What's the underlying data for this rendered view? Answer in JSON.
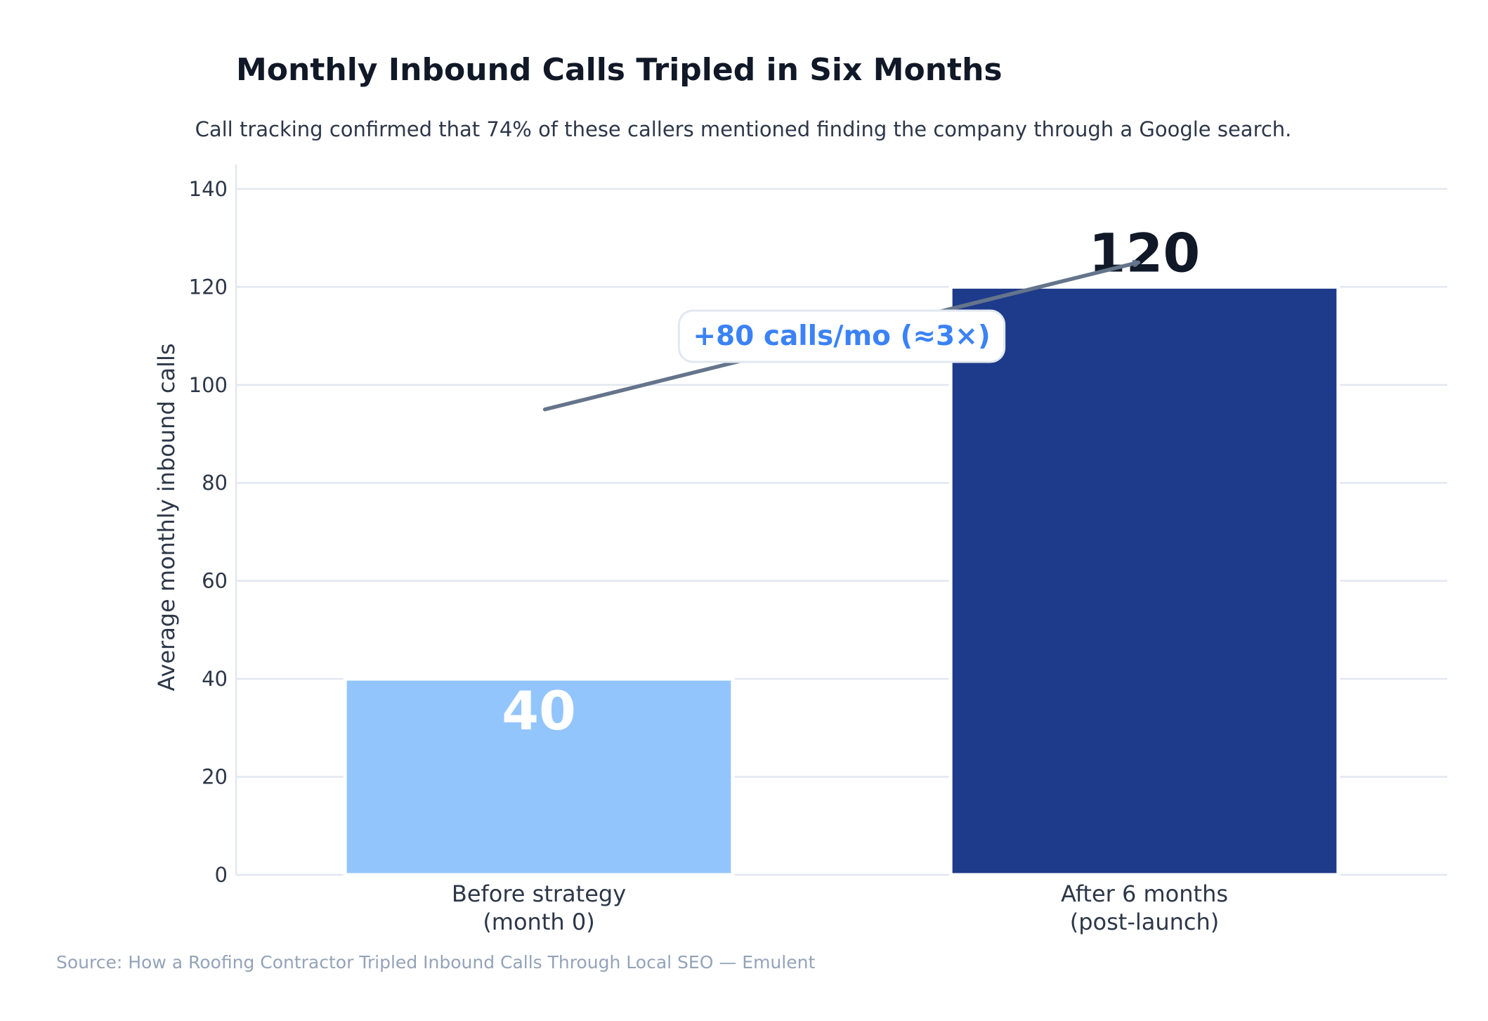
{
  "chart_data": {
    "type": "bar",
    "title": "Monthly Inbound Calls Tripled in Six Months",
    "subtitle": "Call tracking confirmed that 74% of these callers mentioned finding the company through a Google search.",
    "ylabel": "Average monthly inbound calls",
    "xlabel": "",
    "categories": [
      [
        "Before strategy",
        "(month 0)"
      ],
      [
        "After 6 months",
        "(post-launch)"
      ]
    ],
    "values": [
      40,
      120
    ],
    "data_labels": [
      "40",
      "120"
    ],
    "bar_colors": [
      "#93c5fd",
      "#1e3a8a"
    ],
    "data_label_colors": [
      "#ffffff",
      "#111827"
    ],
    "ylim": [
      0,
      145
    ],
    "yticks": [
      0,
      20,
      40,
      60,
      80,
      100,
      120,
      140
    ],
    "grid": true,
    "annotation": {
      "text": "+80 calls/mo (≈3×)",
      "arrow_from": [
        0.01,
        95
      ],
      "arrow_to": [
        0.99,
        125
      ],
      "label_at": [
        0.5,
        110
      ],
      "text_color": "#3b82f6",
      "arrow_color": "#64748b"
    },
    "source": "Source: How a Roofing Contractor Tripled Inbound Calls Through Local SEO — Emulent"
  }
}
